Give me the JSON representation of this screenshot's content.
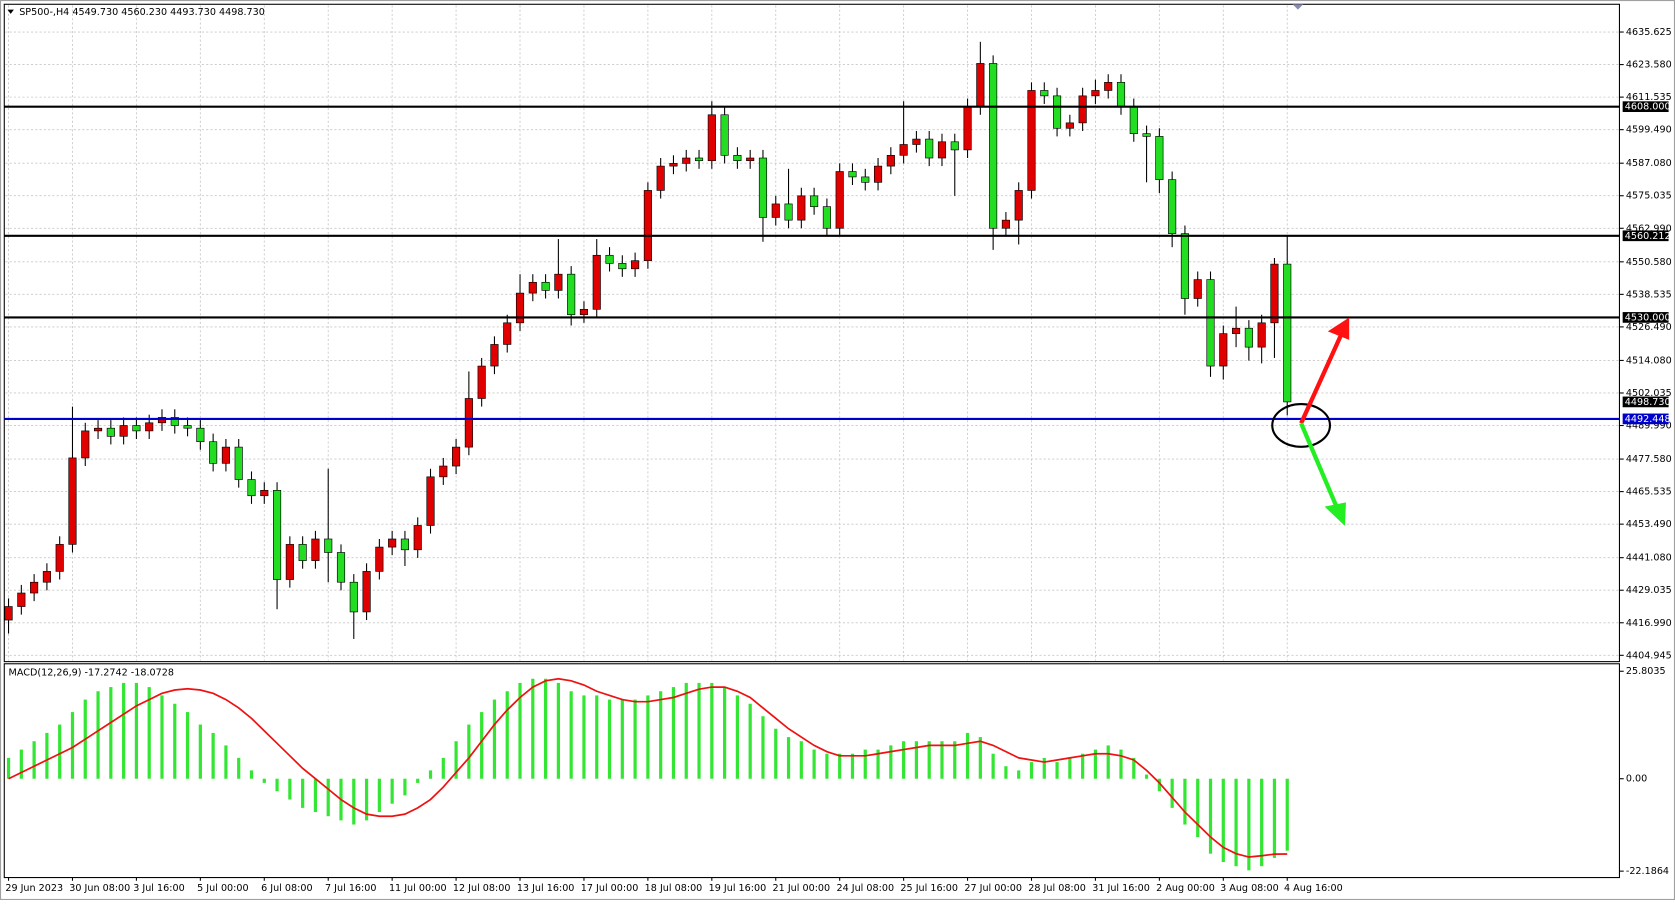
{
  "chart_data": [
    {
      "type": "candlestick",
      "title": "SP500-,H4  4549.730 4560.230 4493.730 4498.730",
      "categories": [
        "29 Jun 2023",
        null,
        null,
        null,
        null,
        "30 Jun 08:00",
        null,
        null,
        null,
        null,
        "3 Jul 16:00",
        null,
        null,
        null,
        null,
        "5 Jul 00:00",
        null,
        null,
        null,
        null,
        "6 Jul 08:00",
        null,
        null,
        null,
        null,
        "7 Jul 16:00",
        null,
        null,
        null,
        null,
        "11 Jul 00:00",
        null,
        null,
        null,
        null,
        "12 Jul 08:00",
        null,
        null,
        null,
        null,
        "13 Jul 16:00",
        null,
        null,
        null,
        null,
        "17 Jul 00:00",
        null,
        null,
        null,
        null,
        "18 Jul 08:00",
        null,
        null,
        null,
        null,
        "19 Jul 16:00",
        null,
        null,
        null,
        null,
        "21 Jul 00:00",
        null,
        null,
        null,
        null,
        "24 Jul 08:00",
        null,
        null,
        null,
        null,
        "25 Jul 16:00",
        null,
        null,
        null,
        null,
        "27 Jul 00:00",
        null,
        null,
        null,
        null,
        "28 Jul 08:00",
        null,
        null,
        null,
        null,
        "31 Jul 16:00",
        null,
        null,
        null,
        null,
        "2 Aug 00:00",
        null,
        null,
        null,
        null,
        "3 Aug 08:00",
        null,
        null,
        null,
        null,
        "4 Aug 16:00"
      ],
      "open": [
        4418,
        4423,
        4428,
        4432,
        4436,
        4446,
        4478,
        4488,
        4489,
        4486,
        4490,
        4488,
        4491,
        4493,
        4490,
        4489,
        4484,
        4476,
        4482,
        4470,
        4464,
        4466,
        4433,
        4446,
        4440,
        4448,
        4443,
        4432,
        4421,
        4436,
        4445,
        4448,
        4444,
        4453,
        4471,
        4475,
        4482,
        4500,
        4512,
        4520,
        4528,
        4539,
        4543,
        4540,
        4546,
        4531,
        4533,
        4553,
        4550,
        4548,
        4551,
        4577,
        4586,
        4587,
        4589,
        4588,
        4605,
        4590,
        4588,
        4589,
        4567,
        4572,
        4566,
        4575,
        4571,
        4563,
        4584,
        4582,
        4580,
        4586,
        4590,
        4594,
        4596,
        4589,
        4595,
        4592,
        4608,
        4624,
        4563,
        4566,
        4577,
        4614,
        4612,
        4600,
        4602,
        4612,
        4614,
        4617,
        4608,
        4598,
        4597,
        4581,
        4561,
        4537,
        4544,
        4512,
        4524,
        4526,
        4519,
        4528,
        4549.73
      ],
      "high": [
        4426,
        4431,
        4435,
        4439,
        4449,
        4497,
        4491,
        4492,
        4492,
        4493,
        4493,
        4494,
        4496,
        4496,
        4493,
        4492,
        4487,
        4485,
        4485,
        4473,
        4469,
        4469,
        4449,
        4449,
        4451,
        4474,
        4446,
        4435,
        4439,
        4448,
        4451,
        4451,
        4456,
        4474,
        4478,
        4485,
        4510,
        4515,
        4523,
        4531,
        4546,
        4546,
        4546,
        4559,
        4549,
        4536,
        4559,
        4556,
        4553,
        4554,
        4580,
        4589,
        4590,
        4592,
        4592,
        4610,
        4608,
        4593,
        4592,
        4592,
        4575,
        4585,
        4578,
        4578,
        4574,
        4587,
        4587,
        4585,
        4589,
        4593,
        4610,
        4599,
        4599,
        4598,
        4598,
        4611,
        4632,
        4627,
        4569,
        4580,
        4617,
        4617,
        4615,
        4605,
        4615,
        4618,
        4620,
        4620,
        4611,
        4601,
        4600,
        4584,
        4564,
        4547,
        4547,
        4527,
        4534,
        4529,
        4531,
        4552,
        4560.23
      ],
      "low": [
        4413,
        4420,
        4425,
        4429,
        4433,
        4443,
        4475,
        4485,
        4483,
        4483,
        4485,
        4485,
        4488,
        4487,
        4486,
        4481,
        4473,
        4473,
        4467,
        4461,
        4461,
        4422,
        4430,
        4437,
        4437,
        4432,
        4429,
        4411,
        4418,
        4433,
        4442,
        4438,
        4441,
        4450,
        4468,
        4472,
        4479,
        4497,
        4509,
        4517,
        4525,
        4536,
        4537,
        4537,
        4527,
        4528,
        4530,
        4547,
        4545,
        4545,
        4548,
        4574,
        4583,
        4584,
        4585,
        4585,
        4587,
        4585,
        4585,
        4558,
        4564,
        4563,
        4563,
        4568,
        4560,
        4560,
        4579,
        4577,
        4577,
        4583,
        4587,
        4591,
        4586,
        4586,
        4575,
        4589,
        4605,
        4555,
        4560,
        4557,
        4574,
        4609,
        4597,
        4597,
        4599,
        4609,
        4611,
        4605,
        4595,
        4580,
        4576,
        4556,
        4531,
        4534,
        4508,
        4507,
        4519,
        4514,
        4513,
        4515,
        4493.73
      ],
      "close": [
        4423,
        4428,
        4432,
        4436,
        4446,
        4478,
        4488,
        4489,
        4486,
        4490,
        4488,
        4491,
        4493,
        4490,
        4489,
        4484,
        4476,
        4482,
        4470,
        4464,
        4466,
        4433,
        4446,
        4440,
        4448,
        4443,
        4432,
        4421,
        4436,
        4445,
        4448,
        4444,
        4453,
        4471,
        4475,
        4482,
        4500,
        4512,
        4520,
        4528,
        4539,
        4543,
        4540,
        4546,
        4531,
        4533,
        4553,
        4550,
        4548,
        4551,
        4577,
        4586,
        4587,
        4589,
        4588,
        4605,
        4590,
        4588,
        4589,
        4567,
        4572,
        4566,
        4575,
        4571,
        4563,
        4584,
        4582,
        4580,
        4586,
        4590,
        4594,
        4596,
        4589,
        4595,
        4592,
        4608,
        4624,
        4563,
        4566,
        4577,
        4614,
        4612,
        4600,
        4602,
        4612,
        4614,
        4617,
        4608,
        4598,
        4597,
        4581,
        4561,
        4537,
        4544,
        4512,
        4524,
        4526,
        4519,
        4528,
        4549.73,
        4498.73
      ],
      "up_color": "#e00000",
      "down_color": "#22dd22",
      "ylim": [
        4403,
        4645.5
      ],
      "yticks": [
        4635.625,
        {
          "value": 4623.58,
          "label": "4623.580"
        },
        4611.535,
        {
          "value": 4599.49,
          "label": "4599.490"
        },
        {
          "value": 4587.08,
          "label": "4587.080"
        },
        4575.035,
        {
          "value": 4562.99,
          "label": "4562.990"
        },
        {
          "value": 4550.58,
          "label": "4550.580"
        },
        4538.535,
        {
          "value": 4526.49,
          "label": "4526.490"
        },
        {
          "value": 4514.08,
          "label": "4514.080"
        },
        4502.035,
        {
          "value": 4489.99,
          "label": "4489.990"
        },
        {
          "value": 4477.58,
          "label": "4477.580"
        },
        4465.535,
        {
          "value": 4453.49,
          "label": "4453.490"
        },
        {
          "value": 4441.08,
          "label": "4441.080"
        },
        4429.035,
        {
          "value": 4416.99,
          "label": "4416.990"
        },
        4404.945
      ],
      "levels": [
        {
          "value": 4608,
          "label": "4608.000",
          "color": "#000000"
        },
        {
          "value": 4560.212,
          "label": "4560.212",
          "color": "#000000"
        },
        {
          "value": 4530,
          "label": "4530.000",
          "color": "#000000"
        },
        {
          "value": 4492.448,
          "label": "4492.448",
          "color": "#0000cc"
        }
      ],
      "current_price": {
        "value": 4498.73,
        "label": "4498.730"
      },
      "grid": true
    },
    {
      "type": "macd",
      "title": "MACD(12,26,9) -17.2742 -18.0728",
      "ylim": [
        -23.47,
        27.34
      ],
      "yticks": [
        25.8035,
        {
          "value": 0,
          "label": "0.00"
        },
        -22.1864
      ],
      "series": [
        {
          "kind": "bar",
          "color": "#33e633",
          "values": [
            5,
            7,
            9,
            11,
            13,
            16,
            19,
            21,
            22,
            23,
            23,
            22,
            20,
            18,
            16,
            13,
            11,
            8,
            5,
            2,
            -1,
            -3,
            -5,
            -7,
            -8,
            -9,
            -10,
            -11,
            -10,
            -8,
            -6,
            -4,
            -1,
            2,
            5,
            9,
            13,
            16,
            19,
            21,
            23,
            24,
            24,
            23,
            21,
            20,
            20,
            19,
            19,
            19,
            20,
            21,
            22,
            23,
            23,
            23,
            22,
            20,
            18,
            15,
            12,
            10,
            9,
            7,
            6,
            6,
            6,
            7,
            7,
            8,
            9,
            9,
            9,
            9,
            9,
            11,
            10,
            6,
            3,
            2,
            4,
            5,
            4,
            5,
            6,
            7,
            8,
            7,
            5,
            1,
            -3,
            -7,
            -11,
            -14,
            -18,
            -20,
            -21,
            -22,
            -21,
            -19,
            -17.2742
          ]
        },
        {
          "kind": "line",
          "color": "#ee1111",
          "values": [
            0,
            1.5,
            3,
            4.5,
            6,
            7.5,
            9.5,
            11.5,
            13.5,
            15.5,
            17.5,
            19,
            20.5,
            21.3,
            21.6,
            21.3,
            20.5,
            19,
            17,
            14.5,
            11.5,
            8.5,
            5.5,
            2.5,
            0,
            -2.5,
            -5,
            -7,
            -8.5,
            -9,
            -9,
            -8.5,
            -7,
            -5,
            -2,
            1.5,
            5,
            9,
            13,
            16.5,
            19.5,
            22,
            23.5,
            24,
            23.5,
            22.5,
            21,
            20,
            19,
            18.5,
            18.5,
            19,
            19.5,
            20.5,
            21.5,
            22,
            22,
            21,
            19.5,
            17,
            14.5,
            12,
            10,
            8,
            6.5,
            5.5,
            5.5,
            5.5,
            6,
            6.5,
            7,
            7.5,
            8,
            8,
            8,
            8.5,
            9,
            8,
            6.5,
            5,
            4.5,
            4,
            4.5,
            5,
            5.5,
            6,
            6,
            5.5,
            4.5,
            2,
            -1,
            -4.5,
            -8,
            -11,
            -14,
            -16.5,
            -18,
            -18.8,
            -18.5,
            -18.1,
            -18.0728
          ]
        }
      ]
    }
  ]
}
